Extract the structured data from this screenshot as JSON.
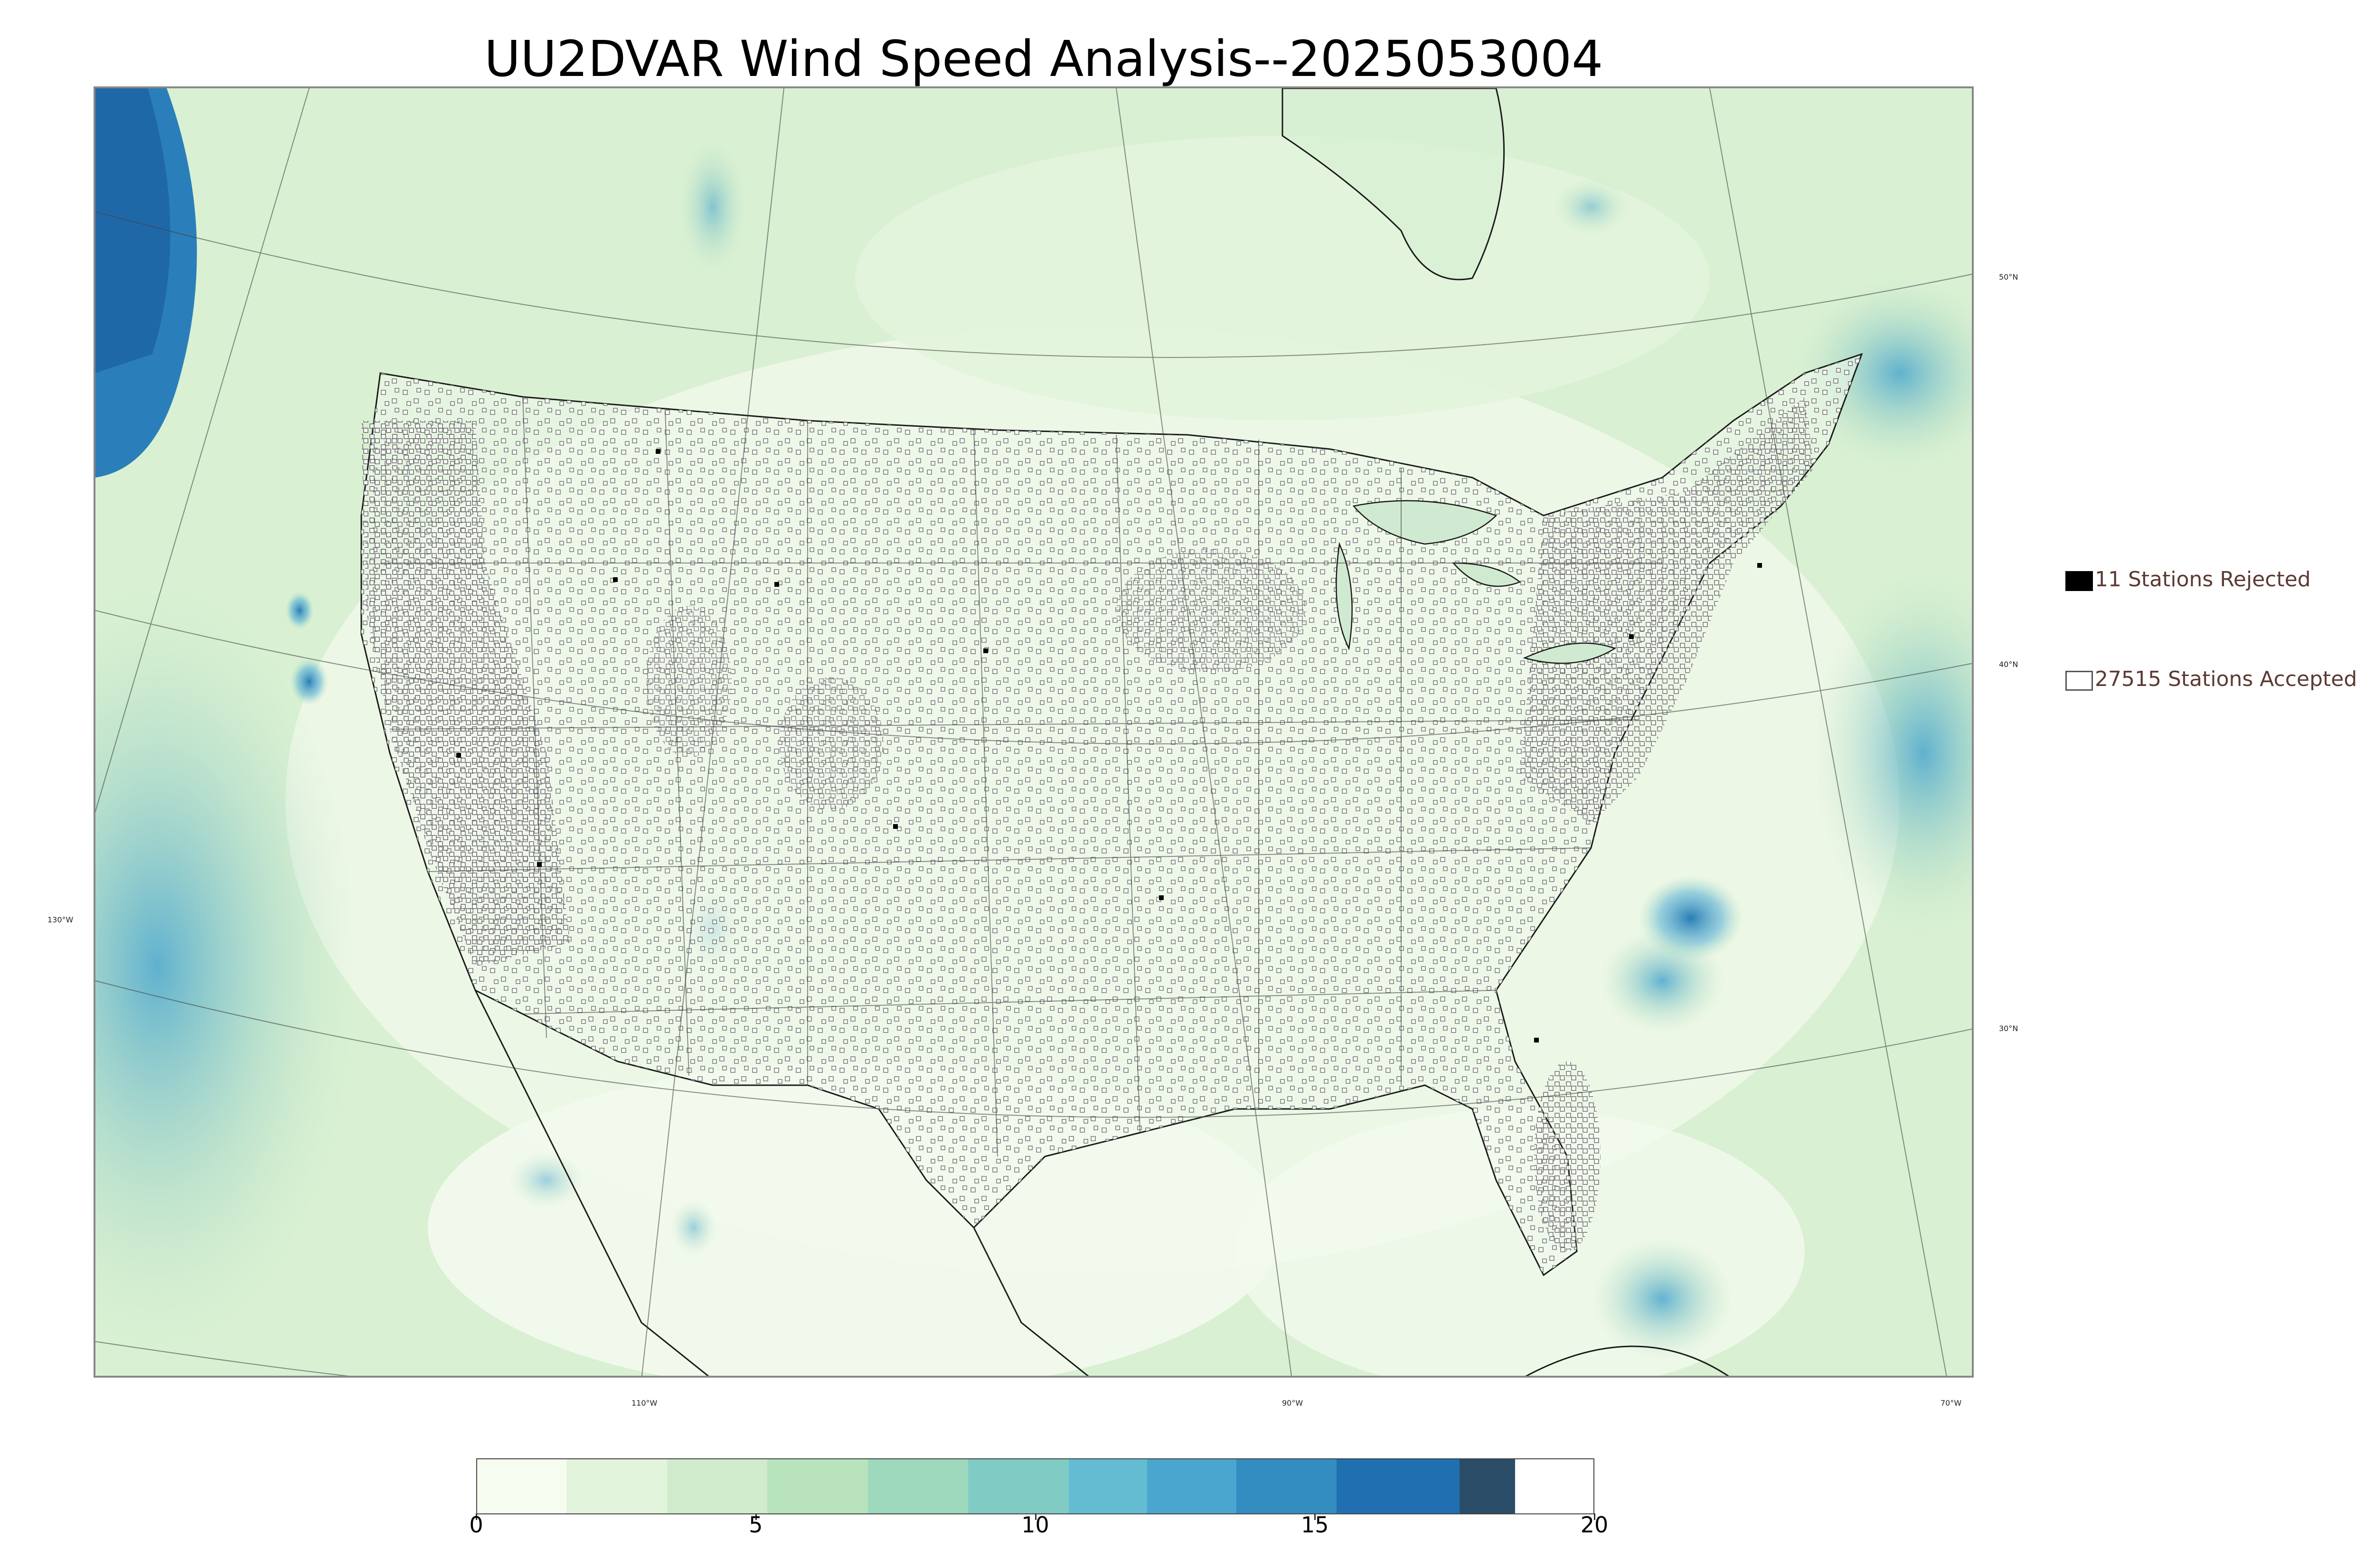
{
  "title": "UU2DVAR Wind Speed Analysis--2025053004",
  "legend": {
    "rejected_label": "11 Stations Rejected",
    "accepted_label": "27515 Stations Accepted"
  },
  "graticule": {
    "lat_labels": [
      "50°N",
      "40°N",
      "30°N"
    ],
    "lon_labels": [
      "130°W",
      "110°W",
      "90°W",
      "70°W"
    ]
  },
  "colorbar": {
    "ticks": [
      "0",
      "5",
      "10",
      "15",
      "20"
    ],
    "min": 0,
    "max": 20,
    "colors": [
      "#f7fcf0",
      "#e3f4dc",
      "#d0eccc",
      "#b8e3bc",
      "#9ed8bd",
      "#80ccc4",
      "#63bcd2",
      "#4aa6ce",
      "#348dc0",
      "#2070b1",
      "#2b4d68"
    ]
  },
  "colors": {
    "ocean_calm": "#eaf7e4",
    "land_calm": "#eef8e8",
    "strong_wind": "#1f78b4",
    "station_marker": "#555555"
  }
}
